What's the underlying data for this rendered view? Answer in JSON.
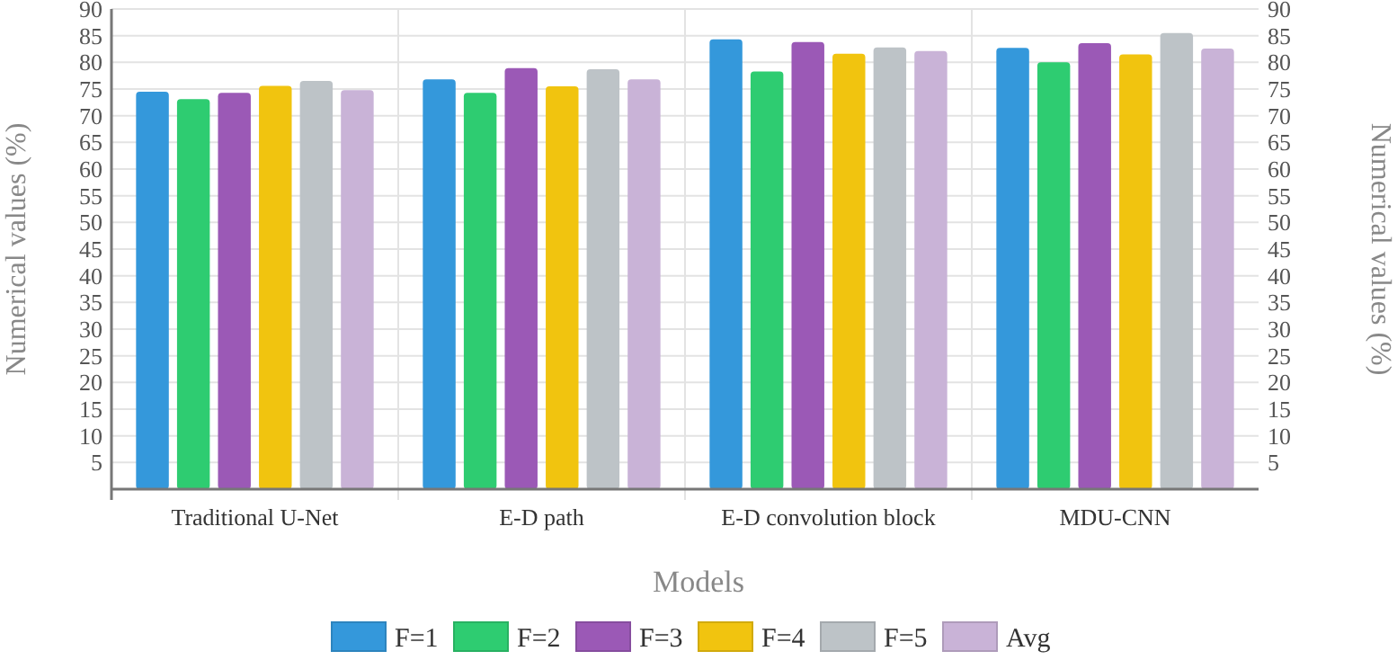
{
  "chart_data": {
    "type": "bar",
    "xlabel": "Models",
    "ylabel": "Numerical values (%)",
    "y2label": "Numerical values (%)",
    "categories": [
      "Traditional U-Net",
      "E-D path",
      "E-D convolution block",
      "MDU-CNN"
    ],
    "series": [
      {
        "name": "F=1",
        "color": "#3498db",
        "values": [
          74.5,
          76.8,
          84.3,
          82.7
        ]
      },
      {
        "name": "F=2",
        "color": "#2ecc71",
        "values": [
          73.1,
          74.3,
          78.3,
          80.0
        ]
      },
      {
        "name": "F=3",
        "color": "#9b59b6",
        "values": [
          74.3,
          78.9,
          83.8,
          83.6
        ]
      },
      {
        "name": "F=4",
        "color": "#f1c40f",
        "values": [
          75.6,
          75.5,
          81.6,
          81.5
        ]
      },
      {
        "name": "F=5",
        "color": "#bdc3c7",
        "values": [
          76.5,
          78.7,
          82.8,
          85.5
        ]
      },
      {
        "name": "Avg",
        "color": "#c9b3d7",
        "values": [
          74.8,
          76.8,
          82.1,
          82.6
        ]
      }
    ],
    "ylim": [
      0,
      90
    ],
    "yticks": [
      5,
      10,
      15,
      20,
      25,
      30,
      35,
      40,
      45,
      50,
      55,
      60,
      65,
      70,
      75,
      80,
      85,
      90
    ],
    "y2lim": [
      0,
      90
    ],
    "y2ticks": [
      5,
      10,
      15,
      20,
      25,
      30,
      35,
      40,
      45,
      50,
      55,
      60,
      65,
      70,
      75,
      80,
      85,
      90
    ],
    "grid": true,
    "legend": "bottom"
  }
}
